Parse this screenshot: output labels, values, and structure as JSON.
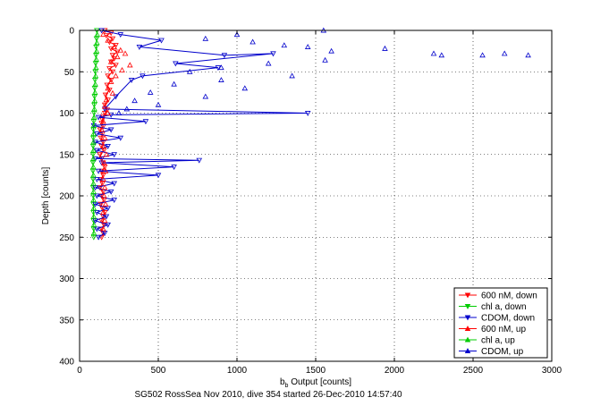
{
  "chart_data": {
    "type": "scatter",
    "title": "",
    "caption": "SG502 RossSea Nov 2010, dive 354 started 26-Dec-2010 14:57:40",
    "xlabel_main": "b",
    "xlabel_sub": "b",
    "xlabel_rest": " Output [counts]",
    "ylabel": "Depth [counts]",
    "xlim": [
      0,
      3000
    ],
    "ylim": [
      0,
      400
    ],
    "y_reversed": true,
    "x_ticks": [
      0,
      500,
      1000,
      1500,
      2000,
      2500,
      3000
    ],
    "y_ticks": [
      0,
      50,
      100,
      150,
      200,
      250,
      300,
      350,
      400
    ],
    "grid": true,
    "legend_position": "bottom-right",
    "series": [
      {
        "name": "600 nM, down",
        "color": "#ff0000",
        "marker": "triangle-down",
        "line": true,
        "points": [
          [
            160,
            0
          ],
          [
            200,
            3
          ],
          [
            170,
            6
          ],
          [
            210,
            10
          ],
          [
            190,
            14
          ],
          [
            230,
            18
          ],
          [
            200,
            22
          ],
          [
            240,
            26
          ],
          [
            210,
            30
          ],
          [
            220,
            34
          ],
          [
            200,
            38
          ],
          [
            230,
            42
          ],
          [
            190,
            46
          ],
          [
            210,
            50
          ],
          [
            180,
            55
          ],
          [
            200,
            60
          ],
          [
            175,
            66
          ],
          [
            190,
            72
          ],
          [
            165,
            78
          ],
          [
            180,
            84
          ],
          [
            160,
            90
          ],
          [
            175,
            96
          ],
          [
            160,
            100
          ],
          [
            150,
            104
          ],
          [
            145,
            108
          ],
          [
            140,
            112
          ],
          [
            150,
            116
          ],
          [
            130,
            120
          ],
          [
            145,
            125
          ],
          [
            135,
            130
          ],
          [
            150,
            135
          ],
          [
            140,
            140
          ],
          [
            155,
            145
          ],
          [
            130,
            150
          ],
          [
            140,
            155
          ],
          [
            150,
            160
          ],
          [
            160,
            165
          ],
          [
            140,
            170
          ],
          [
            150,
            175
          ],
          [
            135,
            180
          ],
          [
            145,
            185
          ],
          [
            130,
            190
          ],
          [
            150,
            195
          ],
          [
            140,
            200
          ],
          [
            155,
            205
          ],
          [
            135,
            210
          ],
          [
            145,
            215
          ],
          [
            160,
            220
          ],
          [
            150,
            225
          ],
          [
            140,
            230
          ],
          [
            155,
            235
          ],
          [
            140,
            240
          ],
          [
            150,
            245
          ],
          [
            140,
            250
          ]
        ]
      },
      {
        "name": "chl a, down",
        "color": "#00cc00",
        "marker": "triangle-down",
        "line": true,
        "points": [
          [
            110,
            0
          ],
          [
            108,
            10
          ],
          [
            105,
            20
          ],
          [
            104,
            30
          ],
          [
            102,
            40
          ],
          [
            100,
            50
          ],
          [
            98,
            60
          ],
          [
            96,
            70
          ],
          [
            95,
            80
          ],
          [
            93,
            90
          ],
          [
            92,
            100
          ],
          [
            90,
            110
          ],
          [
            88,
            120
          ],
          [
            87,
            130
          ],
          [
            86,
            140
          ],
          [
            86,
            150
          ],
          [
            85,
            160
          ],
          [
            85,
            170
          ],
          [
            86,
            180
          ],
          [
            86,
            190
          ],
          [
            87,
            200
          ],
          [
            88,
            210
          ],
          [
            88,
            220
          ],
          [
            89,
            230
          ],
          [
            90,
            240
          ],
          [
            90,
            250
          ]
        ]
      },
      {
        "name": "CDOM, down",
        "color": "#0000cc",
        "marker": "triangle-down",
        "line": true,
        "points": [
          [
            140,
            0
          ],
          [
            260,
            5
          ],
          [
            520,
            12
          ],
          [
            380,
            20
          ],
          [
            920,
            30
          ],
          [
            1230,
            28
          ],
          [
            610,
            40
          ],
          [
            880,
            45
          ],
          [
            400,
            55
          ],
          [
            330,
            60
          ],
          [
            230,
            80
          ],
          [
            160,
            95
          ],
          [
            1450,
            100
          ],
          [
            200,
            102
          ],
          [
            120,
            105
          ],
          [
            420,
            110
          ],
          [
            90,
            115
          ],
          [
            200,
            120
          ],
          [
            110,
            125
          ],
          [
            260,
            130
          ],
          [
            100,
            135
          ],
          [
            180,
            140
          ],
          [
            110,
            145
          ],
          [
            220,
            150
          ],
          [
            100,
            155
          ],
          [
            760,
            157
          ],
          [
            140,
            160
          ],
          [
            600,
            165
          ],
          [
            120,
            170
          ],
          [
            500,
            175
          ],
          [
            110,
            180
          ],
          [
            220,
            185
          ],
          [
            100,
            190
          ],
          [
            200,
            195
          ],
          [
            110,
            200
          ],
          [
            220,
            205
          ],
          [
            100,
            210
          ],
          [
            180,
            215
          ],
          [
            110,
            220
          ],
          [
            170,
            225
          ],
          [
            100,
            230
          ],
          [
            180,
            235
          ],
          [
            110,
            240
          ],
          [
            160,
            245
          ],
          [
            120,
            250
          ]
        ]
      },
      {
        "name": "600 nM, up",
        "color": "#ff0000",
        "marker": "triangle-up",
        "line": false,
        "points": [
          [
            150,
            5
          ],
          [
            180,
            12
          ],
          [
            220,
            20
          ],
          [
            260,
            24
          ],
          [
            290,
            28
          ],
          [
            240,
            32
          ],
          [
            200,
            38
          ],
          [
            320,
            42
          ],
          [
            270,
            48
          ],
          [
            230,
            55
          ],
          [
            200,
            62
          ],
          [
            180,
            70
          ],
          [
            210,
            76
          ],
          [
            170,
            84
          ],
          [
            160,
            92
          ],
          [
            180,
            100
          ],
          [
            150,
            110
          ],
          [
            140,
            120
          ],
          [
            160,
            130
          ],
          [
            150,
            140
          ],
          [
            170,
            150
          ],
          [
            155,
            160
          ],
          [
            165,
            170
          ],
          [
            150,
            180
          ],
          [
            160,
            190
          ],
          [
            155,
            200
          ],
          [
            165,
            210
          ],
          [
            150,
            220
          ],
          [
            160,
            230
          ],
          [
            150,
            240
          ]
        ]
      },
      {
        "name": "chl a, up",
        "color": "#00cc00",
        "marker": "triangle-up",
        "line": false,
        "points": [
          [
            112,
            5
          ],
          [
            110,
            15
          ],
          [
            108,
            25
          ],
          [
            106,
            35
          ],
          [
            104,
            45
          ],
          [
            102,
            55
          ],
          [
            100,
            65
          ],
          [
            98,
            75
          ],
          [
            96,
            85
          ],
          [
            94,
            95
          ],
          [
            92,
            105
          ],
          [
            90,
            115
          ],
          [
            89,
            125
          ],
          [
            88,
            135
          ],
          [
            88,
            145
          ],
          [
            87,
            155
          ],
          [
            87,
            165
          ],
          [
            88,
            175
          ],
          [
            88,
            185
          ],
          [
            89,
            195
          ],
          [
            89,
            205
          ],
          [
            90,
            215
          ],
          [
            90,
            225
          ],
          [
            91,
            235
          ],
          [
            91,
            245
          ]
        ]
      },
      {
        "name": "CDOM, up",
        "color": "#0000cc",
        "marker": "triangle-up",
        "line": false,
        "points": [
          [
            1550,
            0
          ],
          [
            1000,
            5
          ],
          [
            800,
            10
          ],
          [
            1100,
            14
          ],
          [
            1300,
            18
          ],
          [
            1450,
            20
          ],
          [
            1600,
            25
          ],
          [
            2250,
            28
          ],
          [
            2300,
            30
          ],
          [
            2850,
            30
          ],
          [
            1940,
            22
          ],
          [
            2560,
            30
          ],
          [
            2700,
            28
          ],
          [
            1560,
            36
          ],
          [
            1200,
            40
          ],
          [
            900,
            45
          ],
          [
            700,
            50
          ],
          [
            1350,
            55
          ],
          [
            900,
            60
          ],
          [
            600,
            65
          ],
          [
            1050,
            70
          ],
          [
            450,
            75
          ],
          [
            800,
            80
          ],
          [
            350,
            85
          ],
          [
            500,
            90
          ],
          [
            300,
            95
          ],
          [
            250,
            100
          ]
        ]
      }
    ]
  }
}
